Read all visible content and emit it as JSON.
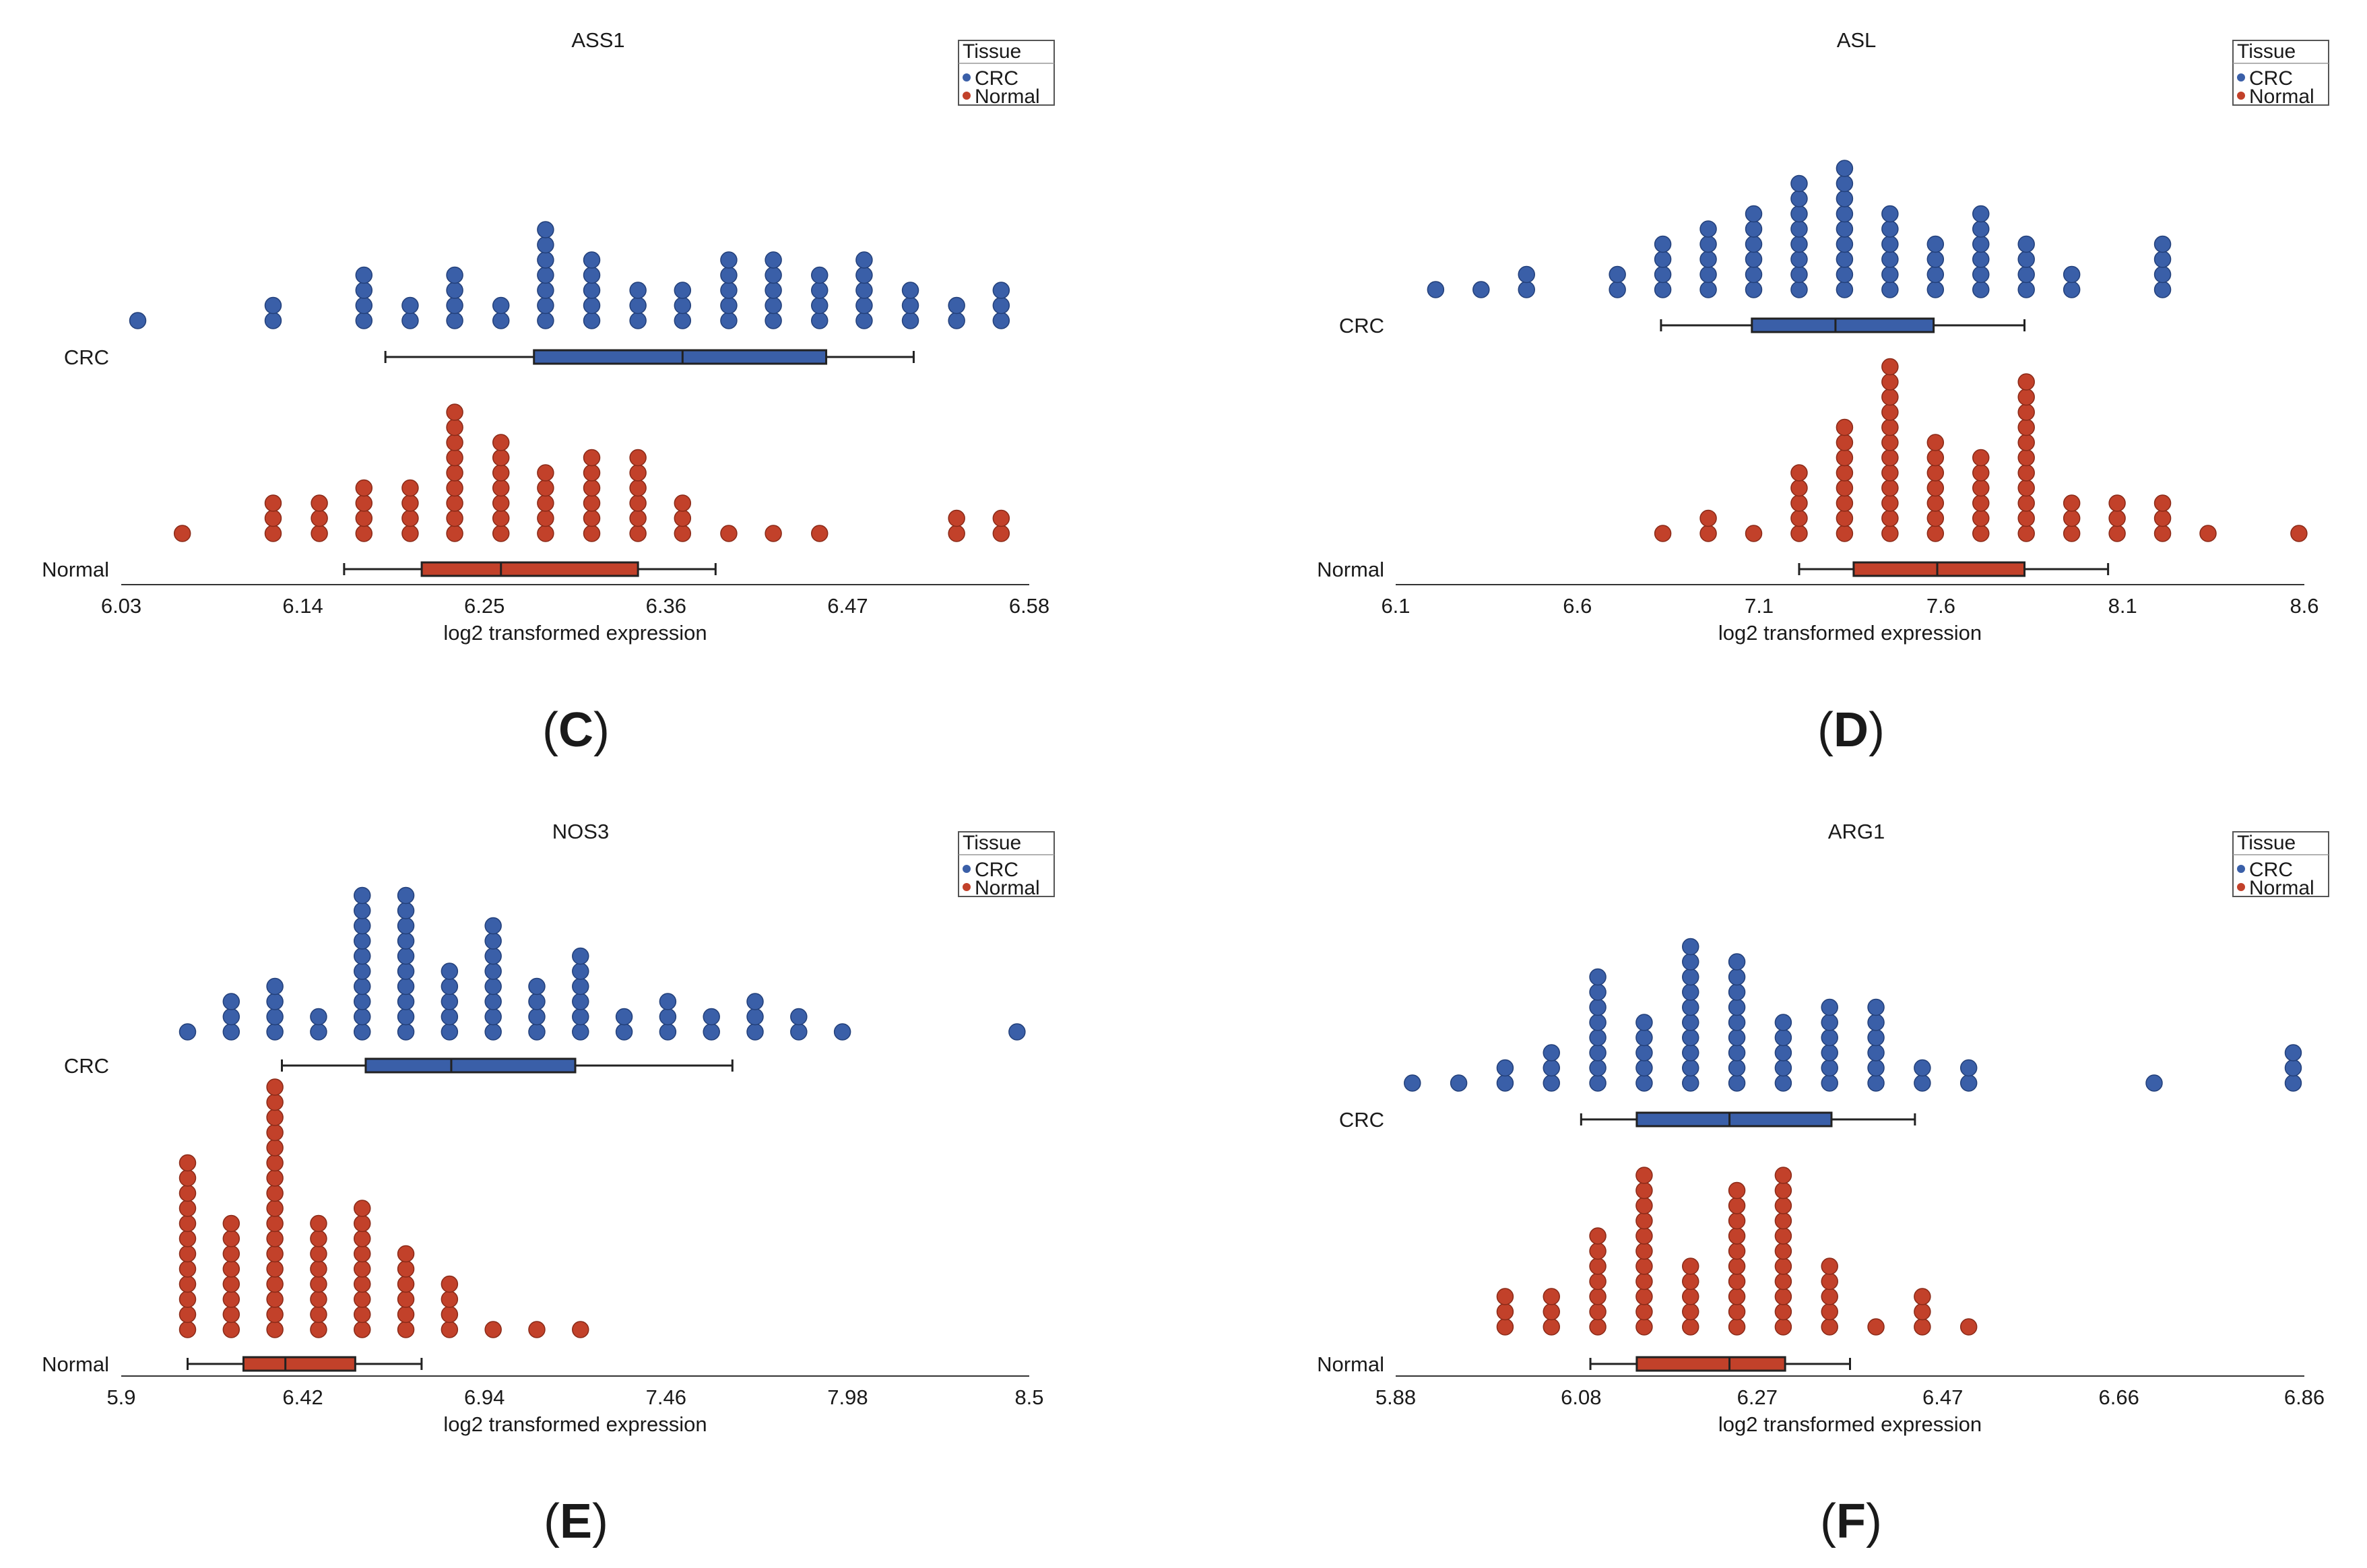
{
  "legend": {
    "title": "Tissue",
    "entries": [
      {
        "label": "CRC",
        "color": "#3a5fa8"
      },
      {
        "label": "Normal",
        "color": "#c2412a"
      }
    ]
  },
  "chart_data": [
    {
      "type": "scatter",
      "subtype": "dot-strip with boxplot",
      "title": "ASS1",
      "panel_label": "(C)",
      "xlabel": "log2 transformed expression",
      "xticks": [
        "6.03",
        "6.14",
        "6.25",
        "6.36",
        "6.47",
        "6.58"
      ],
      "xlim": [
        6.03,
        6.58
      ],
      "categories": [
        "CRC",
        "Normal"
      ],
      "series": [
        {
          "name": "CRC",
          "color": "#3a5fa8",
          "x": [
            6.04,
            6.122,
            6.177,
            6.205,
            6.232,
            6.26,
            6.287,
            6.315,
            6.343,
            6.37,
            6.398,
            6.425,
            6.453,
            6.48,
            6.508,
            6.536,
            6.563
          ],
          "count": [
            1,
            2,
            4,
            2,
            4,
            2,
            7,
            5,
            3,
            3,
            5,
            5,
            4,
            5,
            3,
            2,
            3
          ],
          "box": {
            "whisker_low": 6.19,
            "q1": 6.28,
            "median": 6.37,
            "q3": 6.457,
            "whisker_high": 6.51
          }
        },
        {
          "name": "Normal",
          "color": "#c2412a",
          "x": [
            6.067,
            6.122,
            6.15,
            6.177,
            6.205,
            6.232,
            6.26,
            6.287,
            6.315,
            6.343,
            6.37,
            6.398,
            6.425,
            6.453,
            6.536,
            6.563
          ],
          "count": [
            1,
            3,
            3,
            4,
            4,
            9,
            7,
            5,
            6,
            6,
            3,
            1,
            1,
            1,
            2,
            2
          ],
          "box": {
            "whisker_low": 6.165,
            "q1": 6.212,
            "median": 6.26,
            "q3": 6.343,
            "whisker_high": 6.39
          }
        }
      ]
    },
    {
      "type": "scatter",
      "subtype": "dot-strip with boxplot",
      "title": "ASL",
      "panel_label": "(D)",
      "xlabel": "log2 transformed expression",
      "xticks": [
        "6.1",
        "6.6",
        "7.1",
        "7.6",
        "8.1",
        "8.6"
      ],
      "xlim": [
        6.1,
        8.6
      ],
      "categories": [
        "CRC",
        "Normal"
      ],
      "series": [
        {
          "name": "CRC",
          "color": "#3a5fa8",
          "x": [
            6.21,
            6.335,
            6.46,
            6.71,
            6.835,
            6.96,
            7.085,
            7.21,
            7.335,
            7.46,
            7.585,
            7.71,
            7.835,
            7.96,
            8.21
          ],
          "count": [
            1,
            1,
            2,
            2,
            4,
            5,
            6,
            8,
            9,
            6,
            4,
            6,
            4,
            2,
            4
          ],
          "box": {
            "whisker_low": 6.83,
            "q1": 7.08,
            "median": 7.31,
            "q3": 7.58,
            "whisker_high": 7.83
          }
        },
        {
          "name": "Normal",
          "color": "#c2412a",
          "x": [
            6.835,
            6.96,
            7.085,
            7.21,
            7.335,
            7.46,
            7.585,
            7.71,
            7.835,
            7.96,
            8.085,
            8.21,
            8.335,
            8.585
          ],
          "count": [
            1,
            2,
            1,
            5,
            8,
            12,
            7,
            6,
            11,
            3,
            3,
            3,
            1,
            1
          ],
          "box": {
            "whisker_low": 7.21,
            "q1": 7.36,
            "median": 7.59,
            "q3": 7.83,
            "whisker_high": 8.06
          }
        }
      ]
    },
    {
      "type": "scatter",
      "subtype": "dot-strip with boxplot",
      "title": "NOS3",
      "panel_label": "(E)",
      "xlabel": "log2 transformed expression",
      "xticks": [
        "5.9",
        "6.42",
        "6.94",
        "7.46",
        "7.98",
        "8.5"
      ],
      "xlim": [
        5.9,
        8.5
      ],
      "categories": [
        "CRC",
        "Normal"
      ],
      "series": [
        {
          "name": "CRC",
          "color": "#3a5fa8",
          "x": [
            6.09,
            6.215,
            6.34,
            6.465,
            6.59,
            6.715,
            6.84,
            6.965,
            7.09,
            7.215,
            7.34,
            7.465,
            7.59,
            7.715,
            7.84,
            7.965,
            8.465
          ],
          "count": [
            1,
            3,
            4,
            2,
            10,
            10,
            5,
            8,
            4,
            6,
            2,
            3,
            2,
            3,
            2,
            1,
            1
          ],
          "box": {
            "whisker_low": 6.36,
            "q1": 6.6,
            "median": 6.845,
            "q3": 7.2,
            "whisker_high": 7.65
          }
        },
        {
          "name": "Normal",
          "color": "#c2412a",
          "x": [
            6.09,
            6.215,
            6.34,
            6.465,
            6.59,
            6.715,
            6.84,
            6.965,
            7.09,
            7.215
          ],
          "count": [
            12,
            8,
            17,
            8,
            9,
            6,
            4,
            1,
            1,
            1
          ],
          "box": {
            "whisker_low": 6.09,
            "q1": 6.25,
            "median": 6.37,
            "q3": 6.57,
            "whisker_high": 6.76
          }
        }
      ]
    },
    {
      "type": "scatter",
      "subtype": "dot-strip with boxplot",
      "title": "ARG1",
      "panel_label": "(F)",
      "xlabel": "log2 transformed expression",
      "xticks": [
        "5.88",
        "6.08",
        "6.27",
        "6.47",
        "6.66",
        "6.86"
      ],
      "xlim": [
        5.88,
        6.86
      ],
      "categories": [
        "CRC",
        "Normal"
      ],
      "series": [
        {
          "name": "CRC",
          "color": "#3a5fa8",
          "x": [
            5.898,
            5.948,
            5.998,
            6.048,
            6.098,
            6.148,
            6.198,
            6.248,
            6.298,
            6.348,
            6.398,
            6.448,
            6.498,
            6.698,
            6.848
          ],
          "count": [
            1,
            1,
            2,
            3,
            8,
            5,
            10,
            9,
            5,
            6,
            6,
            2,
            2,
            1,
            3
          ],
          "box": {
            "whisker_low": 6.08,
            "q1": 6.14,
            "median": 6.24,
            "q3": 6.35,
            "whisker_high": 6.44
          }
        },
        {
          "name": "Normal",
          "color": "#c2412a",
          "x": [
            5.998,
            6.048,
            6.098,
            6.148,
            6.198,
            6.248,
            6.298,
            6.348,
            6.398,
            6.448,
            6.498
          ],
          "count": [
            3,
            3,
            7,
            11,
            5,
            10,
            11,
            5,
            1,
            3,
            1
          ],
          "box": {
            "whisker_low": 6.09,
            "q1": 6.14,
            "median": 6.24,
            "q3": 6.3,
            "whisker_high": 6.37
          }
        }
      ]
    }
  ]
}
